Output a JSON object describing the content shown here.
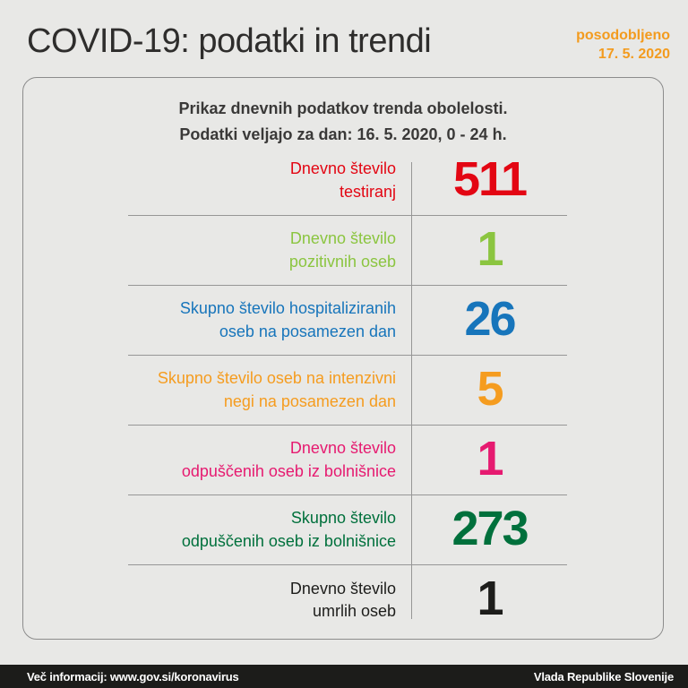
{
  "masthead": {
    "title": "COVID-19: podatki in trendi",
    "updated_label": "posodobljeno",
    "updated_date": "17. 5. 2020"
  },
  "card": {
    "header_line1": "Prikaz dnevnih podatkov trenda obolelosti.",
    "header_line2": "Podatki veljajo za dan: 16. 5. 2020, 0 - 24 h."
  },
  "chart_data": {
    "type": "table",
    "title": "COVID-19: podatki in trendi",
    "subtitle": "Prikaz dnevnih podatkov trenda obolelosti. Podatki veljajo za dan: 16. 5. 2020, 0 - 24 h.",
    "rows": [
      {
        "label": "Dnevno število testiranj",
        "label_lines": [
          "Dnevno število",
          "testiranj"
        ],
        "value": "511",
        "color": "#e30613"
      },
      {
        "label": "Dnevno število pozitivnih oseb",
        "label_lines": [
          "Dnevno število",
          "pozitivnih oseb"
        ],
        "value": "1",
        "color": "#8bc540"
      },
      {
        "label": "Skupno število hospitaliziranih oseb na posamezen dan",
        "label_lines": [
          "Skupno število hospitaliziranih",
          "oseb na posamezen dan"
        ],
        "value": "26",
        "color": "#1775bb"
      },
      {
        "label": "Skupno število oseb na intenzivni negi na posamezen dan",
        "label_lines": [
          "Skupno število oseb na intenzivni",
          "negi na posamezen dan"
        ],
        "value": "5",
        "color": "#f59c1f"
      },
      {
        "label": "Dnevno število odpuščenih oseb iz bolnišnice",
        "label_lines": [
          "Dnevno število",
          "odpuščenih oseb iz bolnišnice"
        ],
        "value": "1",
        "color": "#e61a70"
      },
      {
        "label": "Skupno število odpuščenih oseb iz bolnišnice",
        "label_lines": [
          "Skupno število",
          "odpuščenih oseb iz bolnišnice"
        ],
        "value": "273",
        "color": "#00703c"
      },
      {
        "label": "Dnevno število umrlih oseb",
        "label_lines": [
          "Dnevno število",
          "umrlih oseb"
        ],
        "value": "1",
        "color": "#1d1d1b"
      }
    ]
  },
  "footer": {
    "left": "Več informacij: www.gov.si/koronavirus",
    "right": "Vlada Republike Slovenije"
  },
  "colors": {
    "accent_orange": "#f39b1e",
    "background": "#e8e8e6",
    "grid_line": "#8c8c8c",
    "footer_bg": "#1c1c1a",
    "title_text": "#2e2d2c",
    "header_text": "#3a3938"
  }
}
